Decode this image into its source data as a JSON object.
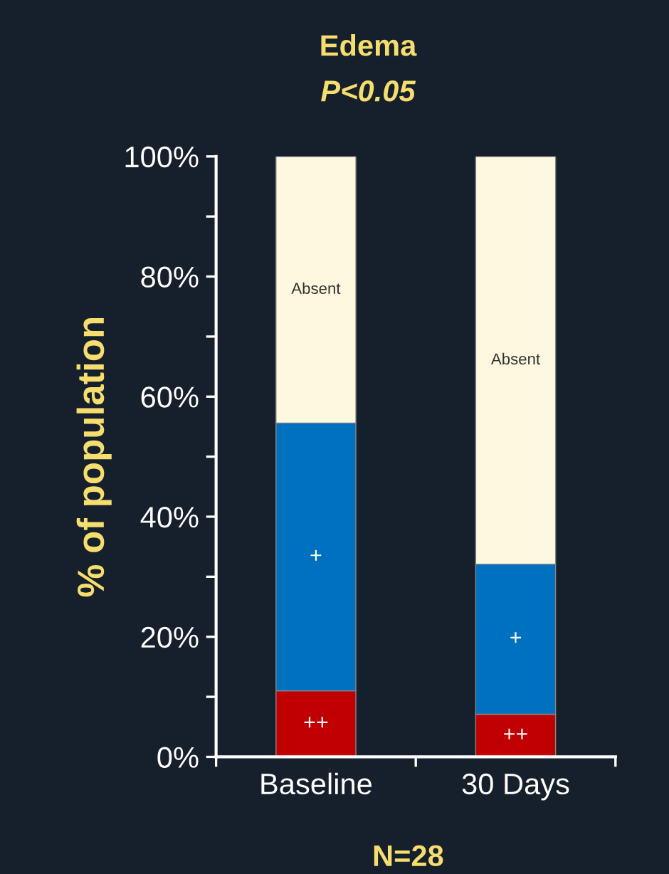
{
  "chart_data": {
    "type": "bar",
    "stacked": true,
    "title": "Edema",
    "subtitle": "P<0.05",
    "ylabel": "% of population",
    "categories": [
      "Baseline",
      "30 Days"
    ],
    "series": [
      {
        "name": "++",
        "color": "#c00000",
        "values": [
          11,
          7.1
        ]
      },
      {
        "name": "+",
        "color": "#0070c0",
        "values": [
          44.6,
          25
        ]
      },
      {
        "name": "Absent",
        "color": "#fff8e1",
        "values": [
          44.4,
          67.9
        ]
      }
    ],
    "ylim": [
      0,
      100
    ],
    "yticks": [
      {
        "value": 0,
        "label": "0%"
      },
      {
        "value": 10,
        "label": null
      },
      {
        "value": 20,
        "label": "20%"
      },
      {
        "value": 30,
        "label": null
      },
      {
        "value": 40,
        "label": "40%"
      },
      {
        "value": 50,
        "label": null
      },
      {
        "value": 60,
        "label": "60%"
      },
      {
        "value": 70,
        "label": null
      },
      {
        "value": 80,
        "label": "80%"
      },
      {
        "value": 90,
        "label": null
      },
      {
        "value": 100,
        "label": "100%"
      }
    ],
    "annotations": [
      "N=28"
    ],
    "grid": false,
    "legend": false
  }
}
